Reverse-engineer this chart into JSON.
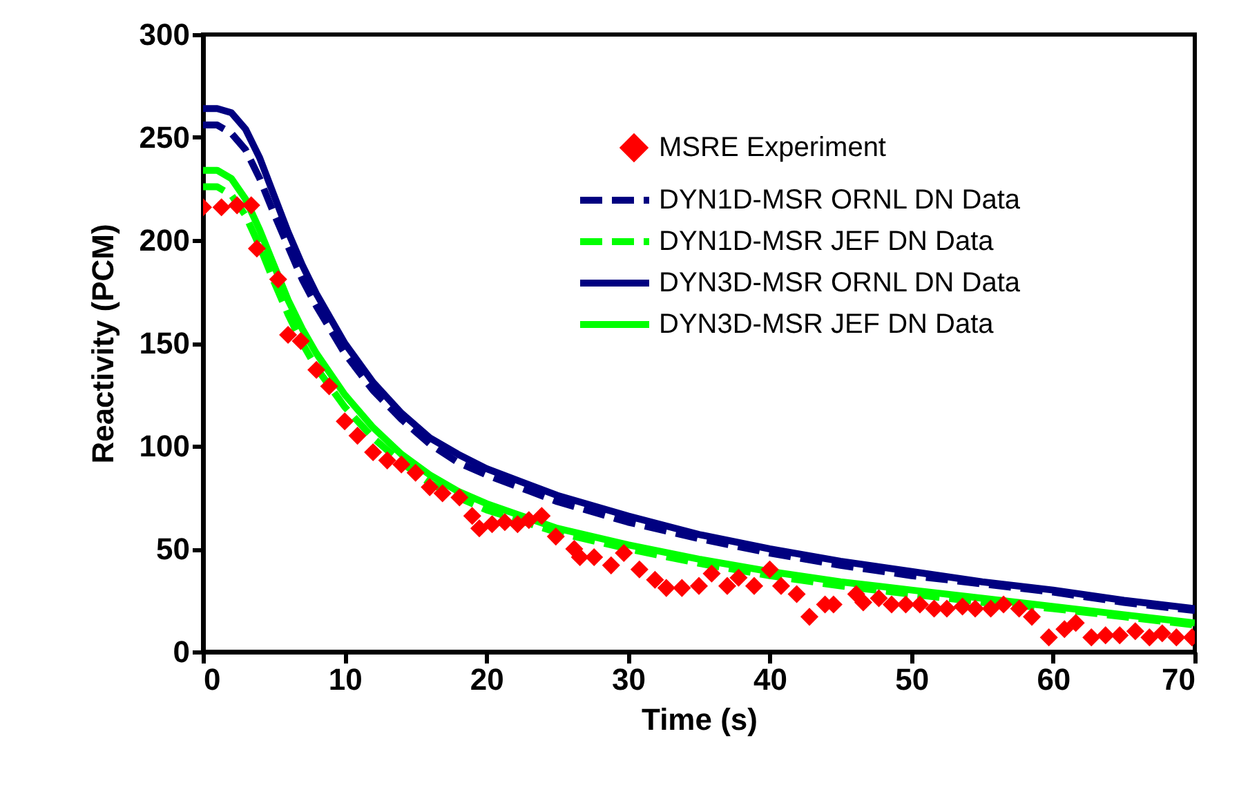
{
  "chart_data": {
    "type": "line",
    "xlabel": "Time (s)",
    "ylabel": "Reactivity (PCM)",
    "xlim": [
      0,
      70
    ],
    "ylim": [
      0,
      300
    ],
    "xticks": [
      0,
      10,
      20,
      30,
      40,
      50,
      60,
      70
    ],
    "yticks": [
      0,
      50,
      100,
      150,
      200,
      250,
      300
    ],
    "grid": false,
    "legend": "top right",
    "series": [
      {
        "name": "MSRE Experiment",
        "type": "scatter",
        "marker": "diamond",
        "color": "#ff0000",
        "x": [
          0,
          1.3,
          2.4,
          3.4,
          3.8,
          5.3,
          6,
          6.9,
          8,
          8.9,
          10,
          10.9,
          12,
          13,
          14,
          15,
          16,
          16.9,
          18.1,
          19,
          19.5,
          20.4,
          21.3,
          22.2,
          23,
          23.9,
          24.9,
          26.2,
          26.6,
          27.6,
          28.8,
          29.7,
          30.8,
          31.9,
          32.7,
          33.8,
          35,
          35.9,
          37,
          37.8,
          38.9,
          40,
          40.8,
          41.9,
          42.8,
          43.9,
          44.5,
          46.1,
          46.6,
          47.7,
          48.6,
          49.6,
          50.6,
          51.6,
          52.5,
          53.6,
          54.5,
          55.6,
          56.5,
          57.6,
          58.5,
          59.7,
          60.8,
          61.6,
          62.7,
          63.7,
          64.7,
          65.8,
          66.8,
          67.7,
          68.7,
          69.8
        ],
        "values": [
          216,
          216,
          217,
          217,
          196,
          181,
          154,
          151,
          137,
          129,
          112,
          105,
          97,
          93,
          91,
          87,
          80,
          77,
          75,
          66,
          60,
          62,
          63,
          62,
          64,
          66,
          56,
          50,
          46,
          46,
          42,
          48,
          40,
          35,
          31,
          31,
          32,
          38,
          32,
          36,
          32,
          40,
          32,
          28,
          17,
          23,
          23,
          28,
          24,
          26,
          23,
          23,
          23,
          21,
          21,
          22,
          21,
          21,
          23,
          21,
          17,
          7,
          11,
          14,
          7,
          8,
          8,
          10,
          7,
          9,
          7,
          7
        ]
      },
      {
        "name": "DYN1D-MSR ORNL DN Data",
        "type": "line",
        "line_style": "dashed",
        "color": "#000080",
        "x": [
          0,
          1,
          2,
          3,
          4,
          5,
          6,
          7,
          8,
          10,
          12,
          14,
          16,
          18,
          20,
          25,
          30,
          35,
          40,
          45,
          50,
          55,
          60,
          65,
          70
        ],
        "values": [
          256,
          256,
          252,
          244,
          230,
          213,
          197,
          181,
          168,
          145,
          127,
          113,
          101,
          92,
          86,
          73,
          63,
          55,
          48,
          42,
          37,
          33,
          29,
          24,
          20
        ]
      },
      {
        "name": "DYN1D-MSR JEF DN Data",
        "type": "line",
        "line_style": "dashed",
        "color": "#00ff00",
        "x": [
          0,
          1,
          2,
          3,
          4,
          5,
          6,
          7,
          8,
          10,
          12,
          14,
          16,
          18,
          20,
          25,
          30,
          35,
          40,
          45,
          50,
          55,
          60,
          65,
          70
        ],
        "values": [
          226,
          226,
          222,
          212,
          197,
          180,
          164,
          150,
          138,
          119,
          104,
          92,
          82,
          75,
          69,
          58,
          50,
          43,
          37,
          32,
          28,
          24,
          21,
          17,
          13
        ]
      },
      {
        "name": "DYN3D-MSR ORNL DN Data",
        "type": "line",
        "line_style": "solid",
        "color": "#000080",
        "x": [
          0,
          1,
          2,
          3,
          4,
          5,
          6,
          7,
          8,
          10,
          12,
          14,
          16,
          18,
          20,
          25,
          30,
          35,
          40,
          45,
          50,
          55,
          60,
          65,
          70
        ],
        "values": [
          264,
          264,
          262,
          254,
          240,
          222,
          204,
          188,
          174,
          150,
          131,
          116,
          104,
          96,
          89,
          76,
          66,
          57,
          50,
          44,
          39,
          34,
          30,
          25,
          21
        ]
      },
      {
        "name": "DYN3D-MSR JEF DN Data",
        "type": "line",
        "line_style": "solid",
        "color": "#00ff00",
        "x": [
          0,
          1,
          2,
          3,
          4,
          5,
          6,
          7,
          8,
          10,
          12,
          14,
          16,
          18,
          20,
          25,
          30,
          35,
          40,
          45,
          50,
          55,
          60,
          65,
          70
        ],
        "values": [
          234,
          234,
          230,
          220,
          205,
          188,
          171,
          157,
          145,
          125,
          109,
          96,
          86,
          78,
          72,
          60,
          52,
          45,
          39,
          34,
          30,
          26,
          22,
          18,
          14
        ]
      }
    ]
  }
}
